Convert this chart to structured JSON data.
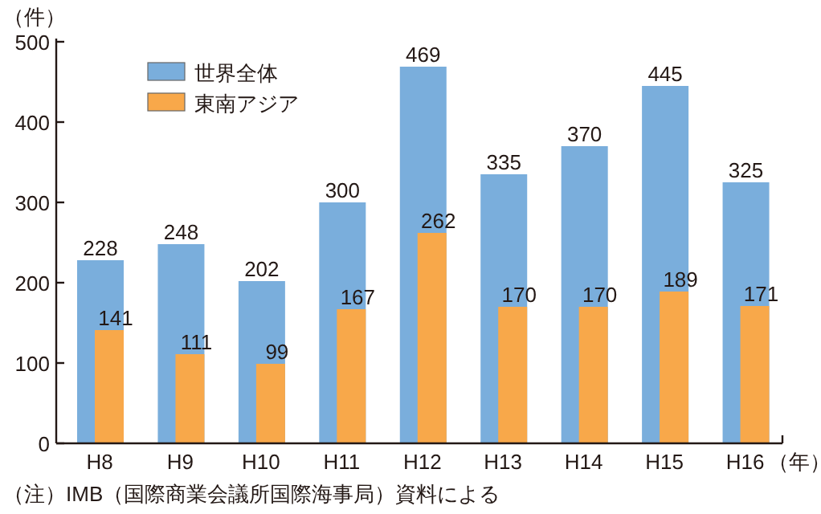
{
  "chart_data": {
    "type": "bar",
    "ylabel": "（件）",
    "xlabel": "（年）",
    "categories": [
      "H8",
      "H9",
      "H10",
      "H11",
      "H12",
      "H13",
      "H14",
      "H15",
      "H16"
    ],
    "series": [
      {
        "name": "世界全体",
        "color": "#7aaedc",
        "values": [
          228,
          248,
          202,
          300,
          469,
          335,
          370,
          445,
          325
        ]
      },
      {
        "name": "東南アジア",
        "color": "#f8a84a",
        "values": [
          141,
          111,
          99,
          167,
          262,
          170,
          170,
          189,
          171
        ]
      }
    ],
    "ylim": [
      0,
      500
    ],
    "yticks": [
      0,
      100,
      200,
      300,
      400,
      500
    ],
    "data_labels": true,
    "grid": false,
    "legend": "top left",
    "annotations": [
      "（注）IMB（国際商業会議所国際海事局）資料による"
    ]
  }
}
